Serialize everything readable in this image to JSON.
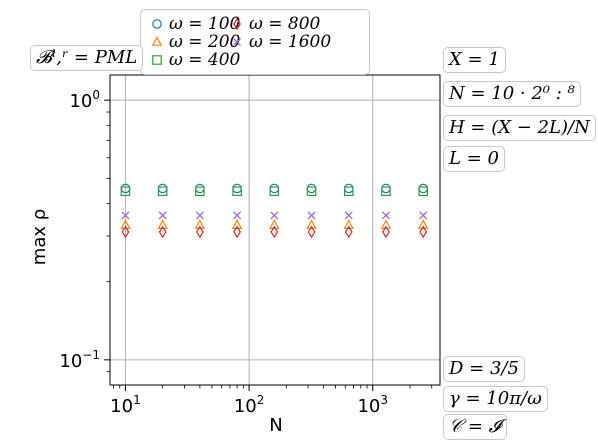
{
  "chart_data": {
    "type": "scatter",
    "xlabel": "N",
    "ylabel": "max ρ",
    "xscale": "log",
    "yscale": "log",
    "xlim": [
      7.5,
      3500
    ],
    "ylim": [
      0.08,
      1.25
    ],
    "grid": true,
    "legend_position": "top-center",
    "x_ticks": [
      {
        "value": 10,
        "base": "10",
        "exp": "1"
      },
      {
        "value": 100,
        "base": "10",
        "exp": "2"
      },
      {
        "value": 1000,
        "base": "10",
        "exp": "3"
      }
    ],
    "y_ticks": [
      {
        "value": 1,
        "base": "10",
        "exp": "0"
      },
      {
        "value": 0.1,
        "base": "10",
        "exp": "−1"
      }
    ],
    "x": [
      10,
      20,
      40,
      80,
      160,
      320,
      640,
      1280,
      2560
    ],
    "series": [
      {
        "name": "ω = 100",
        "marker": "circle",
        "color": "#1f77b4",
        "values": [
          0.457,
          0.457,
          0.457,
          0.457,
          0.457,
          0.457,
          0.457,
          0.457,
          0.457
        ]
      },
      {
        "name": "ω = 200",
        "marker": "triangle",
        "color": "#ff7f0e",
        "values": [
          0.33,
          0.33,
          0.33,
          0.33,
          0.33,
          0.33,
          0.33,
          0.33,
          0.33
        ]
      },
      {
        "name": "ω = 400",
        "marker": "square",
        "color": "#2ca02c",
        "values": [
          0.446,
          0.446,
          0.446,
          0.446,
          0.446,
          0.446,
          0.446,
          0.446,
          0.446
        ]
      },
      {
        "name": "ω = 800",
        "marker": "diamond",
        "color": "#d62728",
        "values": [
          0.311,
          0.311,
          0.311,
          0.311,
          0.311,
          0.311,
          0.311,
          0.311,
          0.311
        ]
      },
      {
        "name": "ω = 1600",
        "marker": "x",
        "color": "#9467bd",
        "values": [
          0.36,
          0.36,
          0.36,
          0.36,
          0.36,
          0.36,
          0.36,
          0.36,
          0.36
        ]
      }
    ]
  },
  "annotations": {
    "boundary": "𝓑ˡ,ʳ = PML",
    "X": "X = 1",
    "N": "N = 10 · 2⁰ : ⁸",
    "H": "H = (X − 2L)/N",
    "L": "L = 0",
    "D": "D = 3/5",
    "gamma": "γ = 10π/ω",
    "C": "𝒞 = 𝓘"
  }
}
